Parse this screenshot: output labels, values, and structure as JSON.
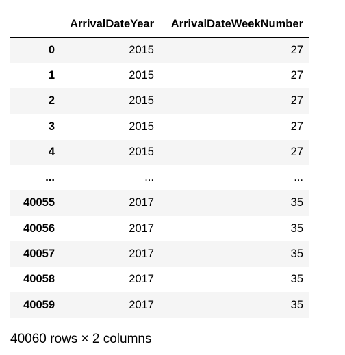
{
  "dataframe": {
    "columns": [
      "ArrivalDateYear",
      "ArrivalDateWeekNumber"
    ],
    "rows": [
      {
        "index": "0",
        "year": "2015",
        "week": "27"
      },
      {
        "index": "1",
        "year": "2015",
        "week": "27"
      },
      {
        "index": "2",
        "year": "2015",
        "week": "27"
      },
      {
        "index": "3",
        "year": "2015",
        "week": "27"
      },
      {
        "index": "4",
        "year": "2015",
        "week": "27"
      },
      {
        "index": "...",
        "year": "...",
        "week": "..."
      },
      {
        "index": "40055",
        "year": "2017",
        "week": "35"
      },
      {
        "index": "40056",
        "year": "2017",
        "week": "35"
      },
      {
        "index": "40057",
        "year": "2017",
        "week": "35"
      },
      {
        "index": "40058",
        "year": "2017",
        "week": "35"
      },
      {
        "index": "40059",
        "year": "2017",
        "week": "35"
      }
    ],
    "shape_text": "40060 rows × 2 columns"
  }
}
